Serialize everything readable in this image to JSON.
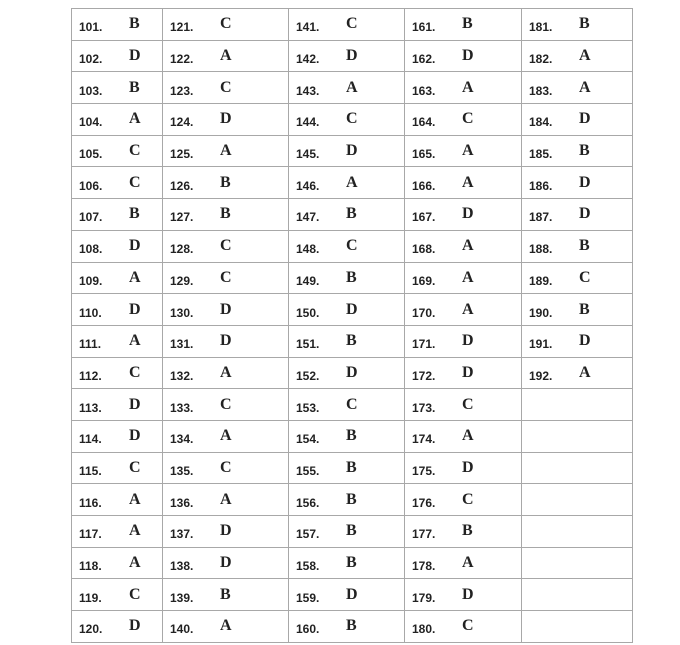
{
  "answer_key": {
    "columns": [
      {
        "items": [
          {
            "num": "101.",
            "ans": "B"
          },
          {
            "num": "102.",
            "ans": "D"
          },
          {
            "num": "103.",
            "ans": "B"
          },
          {
            "num": "104.",
            "ans": "A"
          },
          {
            "num": "105.",
            "ans": "C"
          },
          {
            "num": "106.",
            "ans": "C"
          },
          {
            "num": "107.",
            "ans": "B"
          },
          {
            "num": "108.",
            "ans": "D"
          },
          {
            "num": "109.",
            "ans": "A"
          },
          {
            "num": "110.",
            "ans": "D"
          },
          {
            "num": "111.",
            "ans": "A"
          },
          {
            "num": "112.",
            "ans": "C"
          },
          {
            "num": "113.",
            "ans": "D"
          },
          {
            "num": "114.",
            "ans": "D"
          },
          {
            "num": "115.",
            "ans": "C"
          },
          {
            "num": "116.",
            "ans": "A"
          },
          {
            "num": "117.",
            "ans": "A"
          },
          {
            "num": "118.",
            "ans": "A"
          },
          {
            "num": "119.",
            "ans": "C"
          },
          {
            "num": "120.",
            "ans": "D"
          }
        ]
      },
      {
        "items": [
          {
            "num": "121.",
            "ans": "C"
          },
          {
            "num": "122.",
            "ans": "A"
          },
          {
            "num": "123.",
            "ans": "C"
          },
          {
            "num": "124.",
            "ans": "D"
          },
          {
            "num": "125.",
            "ans": "A"
          },
          {
            "num": "126.",
            "ans": "B"
          },
          {
            "num": "127.",
            "ans": "B"
          },
          {
            "num": "128.",
            "ans": "C"
          },
          {
            "num": "129.",
            "ans": "C"
          },
          {
            "num": "130.",
            "ans": "D"
          },
          {
            "num": "131.",
            "ans": "D"
          },
          {
            "num": "132.",
            "ans": "A"
          },
          {
            "num": "133.",
            "ans": "C"
          },
          {
            "num": "134.",
            "ans": "A"
          },
          {
            "num": "135.",
            "ans": "C"
          },
          {
            "num": "136.",
            "ans": "A"
          },
          {
            "num": "137.",
            "ans": "D"
          },
          {
            "num": "138.",
            "ans": "D"
          },
          {
            "num": "139.",
            "ans": "B"
          },
          {
            "num": "140.",
            "ans": "A"
          }
        ]
      },
      {
        "items": [
          {
            "num": "141.",
            "ans": "C"
          },
          {
            "num": "142.",
            "ans": "D"
          },
          {
            "num": "143.",
            "ans": "A"
          },
          {
            "num": "144.",
            "ans": "C"
          },
          {
            "num": "145.",
            "ans": "D"
          },
          {
            "num": "146.",
            "ans": "A"
          },
          {
            "num": "147.",
            "ans": "B"
          },
          {
            "num": "148.",
            "ans": "C"
          },
          {
            "num": "149.",
            "ans": "B"
          },
          {
            "num": "150.",
            "ans": "D"
          },
          {
            "num": "151.",
            "ans": "B"
          },
          {
            "num": "152.",
            "ans": "D"
          },
          {
            "num": "153.",
            "ans": "C"
          },
          {
            "num": "154.",
            "ans": "B"
          },
          {
            "num": "155.",
            "ans": "B"
          },
          {
            "num": "156.",
            "ans": "B"
          },
          {
            "num": "157.",
            "ans": "B"
          },
          {
            "num": "158.",
            "ans": "B"
          },
          {
            "num": "159.",
            "ans": "D"
          },
          {
            "num": "160.",
            "ans": "B"
          }
        ]
      },
      {
        "items": [
          {
            "num": "161.",
            "ans": "B"
          },
          {
            "num": "162.",
            "ans": "D"
          },
          {
            "num": "163.",
            "ans": "A"
          },
          {
            "num": "164.",
            "ans": "C"
          },
          {
            "num": "165.",
            "ans": "A"
          },
          {
            "num": "166.",
            "ans": "A"
          },
          {
            "num": "167.",
            "ans": "D"
          },
          {
            "num": "168.",
            "ans": "A"
          },
          {
            "num": "169.",
            "ans": "A"
          },
          {
            "num": "170.",
            "ans": "A"
          },
          {
            "num": "171.",
            "ans": "D"
          },
          {
            "num": "172.",
            "ans": "D"
          },
          {
            "num": "173.",
            "ans": "C"
          },
          {
            "num": "174.",
            "ans": "A"
          },
          {
            "num": "175.",
            "ans": "D"
          },
          {
            "num": "176.",
            "ans": "C"
          },
          {
            "num": "177.",
            "ans": "B"
          },
          {
            "num": "178.",
            "ans": "A"
          },
          {
            "num": "179.",
            "ans": "D"
          },
          {
            "num": "180.",
            "ans": "C"
          }
        ]
      },
      {
        "items": [
          {
            "num": "181.",
            "ans": "B"
          },
          {
            "num": "182.",
            "ans": "A"
          },
          {
            "num": "183.",
            "ans": "A"
          },
          {
            "num": "184.",
            "ans": "D"
          },
          {
            "num": "185.",
            "ans": "B"
          },
          {
            "num": "186.",
            "ans": "D"
          },
          {
            "num": "187.",
            "ans": "D"
          },
          {
            "num": "188.",
            "ans": "B"
          },
          {
            "num": "189.",
            "ans": "C"
          },
          {
            "num": "190.",
            "ans": "B"
          },
          {
            "num": "191.",
            "ans": "D"
          },
          {
            "num": "192.",
            "ans": "A"
          }
        ]
      }
    ]
  }
}
